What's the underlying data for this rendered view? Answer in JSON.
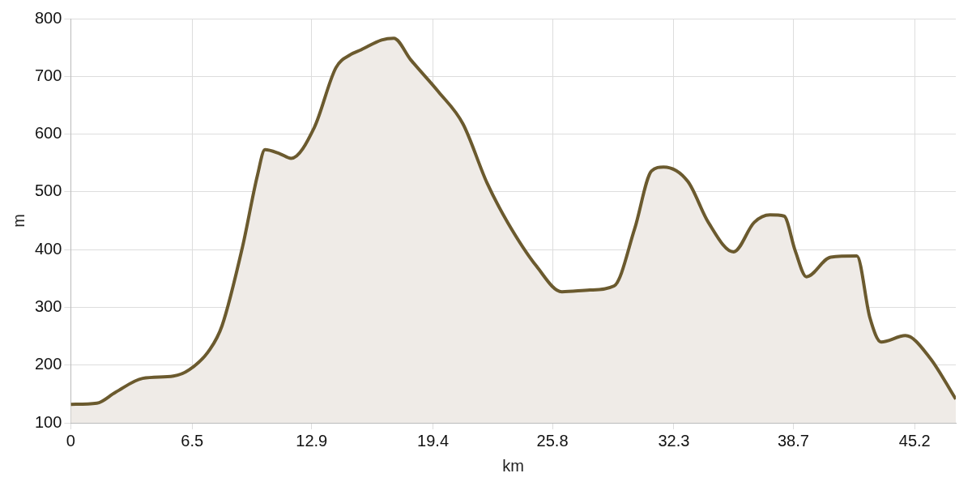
{
  "chart_data": {
    "type": "area",
    "xlabel": "km",
    "ylabel": "m",
    "x": [
      0,
      1.4,
      2.4,
      3.85,
      5.5,
      6.35,
      7.45,
      8.1,
      9.2,
      10.0,
      10.4,
      11.2,
      11.8,
      13.05,
      14.2,
      15.0,
      15.55,
      16.65,
      17.3,
      18.2,
      19.7,
      21.0,
      22.3,
      23.4,
      24.95,
      26.3,
      27.8,
      29.1,
      30.2,
      31.1,
      31.75,
      33.05,
      34.15,
      35.5,
      36.6,
      37.45,
      38.2,
      38.8,
      39.4,
      40.7,
      42.1,
      42.8,
      43.4,
      44.7,
      46.0,
      47.4
    ],
    "series": [
      {
        "color": "#6b5a2e",
        "values": [
          132,
          134,
          153,
          177,
          181,
          192,
          227,
          268,
          405,
          529,
          573,
          566,
          558,
          612,
          715,
          738,
          746,
          763,
          766,
          729,
          673,
          618,
          515,
          447,
          371,
          327,
          330,
          337,
          436,
          536,
          543,
          518,
          447,
          396,
          447,
          460,
          458,
          398,
          353,
          387,
          389,
          282,
          240,
          251,
          213,
          141
        ]
      }
    ],
    "xlim": [
      0,
      47.4
    ],
    "xticks": [
      0,
      6.5,
      12.9,
      19.4,
      25.8,
      32.3,
      38.7,
      45.2
    ],
    "ylim": [
      100,
      800
    ],
    "yticks": [
      100,
      200,
      300,
      400,
      500,
      600,
      700,
      800
    ],
    "grid": true,
    "legend": false,
    "marker": "none",
    "line_style": "solid"
  }
}
